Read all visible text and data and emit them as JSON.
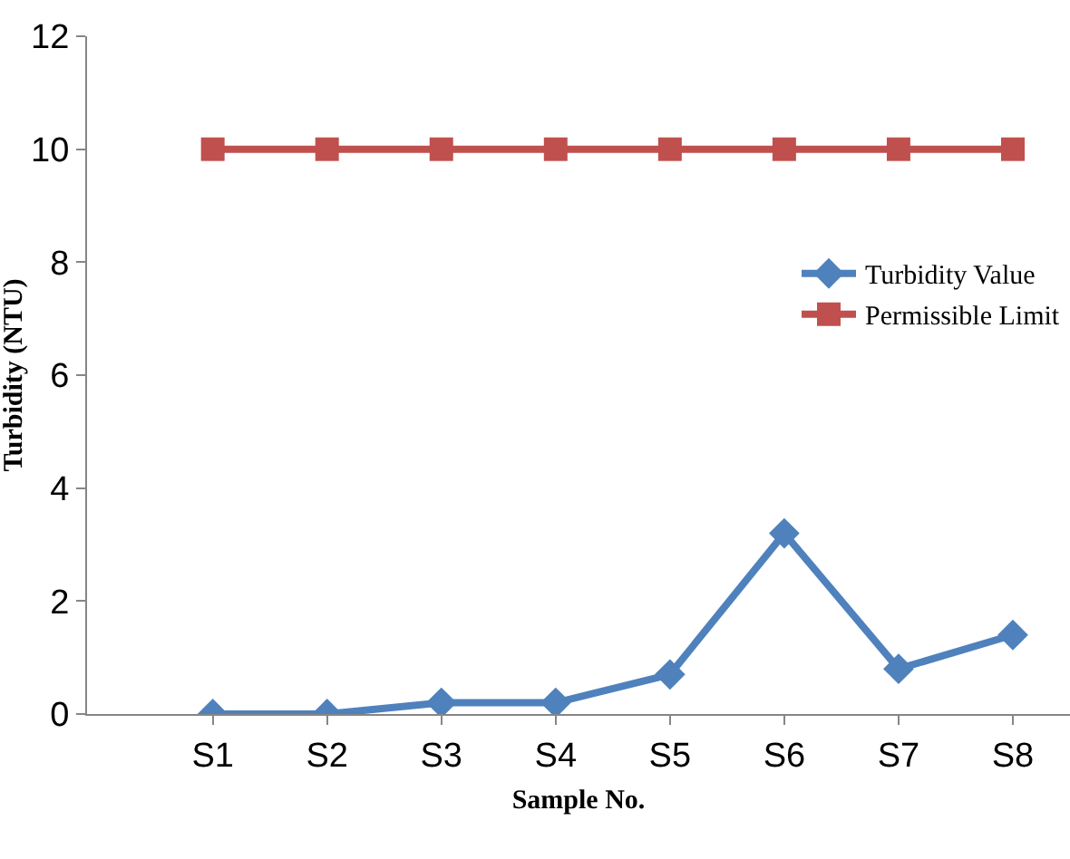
{
  "chart_data": {
    "type": "line",
    "xlabel": "Sample No.",
    "ylabel": "Turbidity (NTU)",
    "categories": [
      "S1",
      "S2",
      "S3",
      "S4",
      "S5",
      "S6",
      "S7",
      "S8"
    ],
    "series": [
      {
        "name": "Turbidity Value",
        "color": "#4f81bd",
        "marker": "diamond",
        "values": [
          0,
          0,
          0.2,
          0.2,
          0.7,
          3.2,
          0.8,
          1.4
        ]
      },
      {
        "name": "Permissible Limit",
        "color": "#c0504d",
        "marker": "square",
        "values": [
          10,
          10,
          10,
          10,
          10,
          10,
          10,
          10
        ]
      }
    ],
    "ylim": [
      0,
      12
    ],
    "yticks": [
      0,
      2,
      4,
      6,
      8,
      10,
      12
    ],
    "grid": false,
    "legend": "right",
    "line_style": "solid"
  }
}
